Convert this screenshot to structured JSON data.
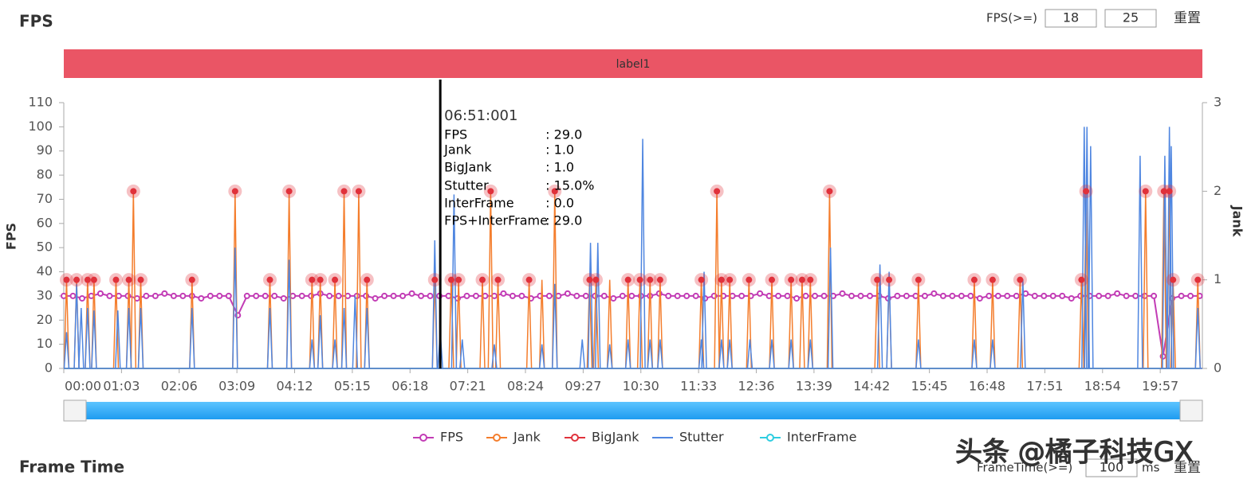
{
  "header": {
    "title": "FPS",
    "threshold_label": "FPS(>=)",
    "threshold_low": 18,
    "threshold_high": 25,
    "reset": "重置"
  },
  "chart_data": {
    "type": "line",
    "band_label": "label1",
    "ylabel": "FPS",
    "y2label": "Jank",
    "xlim": [
      0,
      1243
    ],
    "xticks": [
      {
        "value": 0,
        "label": "00:00"
      },
      {
        "value": 63,
        "label": "01:03"
      },
      {
        "value": 126,
        "label": "02:06"
      },
      {
        "value": 189,
        "label": "03:09"
      },
      {
        "value": 252,
        "label": "04:12"
      },
      {
        "value": 315,
        "label": "05:15"
      },
      {
        "value": 378,
        "label": "06:18"
      },
      {
        "value": 441,
        "label": "07:21"
      },
      {
        "value": 504,
        "label": "08:24"
      },
      {
        "value": 567,
        "label": "09:27"
      },
      {
        "value": 630,
        "label": "10:30"
      },
      {
        "value": 693,
        "label": "11:33"
      },
      {
        "value": 756,
        "label": "12:36"
      },
      {
        "value": 819,
        "label": "13:39"
      },
      {
        "value": 882,
        "label": "14:42"
      },
      {
        "value": 945,
        "label": "15:45"
      },
      {
        "value": 1008,
        "label": "16:48"
      },
      {
        "value": 1071,
        "label": "17:51"
      },
      {
        "value": 1134,
        "label": "18:54"
      },
      {
        "value": 1197,
        "label": "19:57"
      }
    ],
    "ylim": [
      0,
      110
    ],
    "yticks": [
      0,
      10,
      20,
      30,
      40,
      50,
      60,
      70,
      80,
      90,
      100,
      110
    ],
    "y2lim": [
      0,
      3
    ],
    "y2ticks": [
      0,
      1,
      2,
      3
    ],
    "cursor_x": 411,
    "tooltip": {
      "time": "06:51:001",
      "rows": [
        {
          "label": "FPS",
          "value": ": 29.0"
        },
        {
          "label": "Jank",
          "value": ": 1.0"
        },
        {
          "label": "BigJank",
          "value": ": 1.0"
        },
        {
          "label": "Stutter",
          "value": ": 15.0%"
        },
        {
          "label": "InterFrame",
          "value": ": 0.0"
        },
        {
          "label": "FPS+InterFrame",
          "value": ": 29.0"
        }
      ]
    },
    "series": [
      {
        "name": "FPS",
        "color": "#c23cb5",
        "mark": "line",
        "axis": "y",
        "x": [
          0,
          10,
          20,
          30,
          40,
          50,
          60,
          70,
          80,
          90,
          100,
          110,
          120,
          130,
          140,
          150,
          160,
          170,
          180,
          190,
          200,
          210,
          220,
          230,
          240,
          250,
          260,
          270,
          280,
          290,
          300,
          310,
          320,
          330,
          340,
          350,
          360,
          370,
          380,
          390,
          400,
          410,
          420,
          430,
          440,
          450,
          460,
          470,
          480,
          490,
          500,
          510,
          520,
          530,
          540,
          550,
          560,
          570,
          580,
          590,
          600,
          610,
          620,
          630,
          640,
          650,
          660,
          670,
          680,
          690,
          700,
          710,
          720,
          730,
          740,
          750,
          760,
          770,
          780,
          790,
          800,
          810,
          820,
          830,
          840,
          850,
          860,
          870,
          880,
          890,
          900,
          910,
          920,
          930,
          940,
          950,
          960,
          970,
          980,
          990,
          1000,
          1010,
          1020,
          1030,
          1040,
          1050,
          1060,
          1070,
          1080,
          1090,
          1100,
          1110,
          1120,
          1130,
          1140,
          1150,
          1160,
          1170,
          1180,
          1190,
          1200,
          1210,
          1220,
          1230,
          1240
        ],
        "values": [
          30,
          30,
          29,
          30,
          31,
          30,
          30,
          30,
          29,
          30,
          30,
          31,
          30,
          30,
          30,
          29,
          30,
          30,
          30,
          22,
          30,
          30,
          30,
          30,
          29,
          30,
          30,
          30,
          31,
          30,
          30,
          30,
          30,
          30,
          29,
          30,
          30,
          30,
          31,
          30,
          30,
          30,
          30,
          29,
          30,
          30,
          30,
          30,
          31,
          30,
          30,
          29,
          30,
          30,
          30,
          31,
          30,
          30,
          30,
          30,
          29,
          30,
          30,
          30,
          30,
          31,
          30,
          30,
          30,
          30,
          29,
          30,
          30,
          30,
          30,
          30,
          31,
          30,
          30,
          30,
          29,
          30,
          30,
          30,
          30,
          31,
          30,
          30,
          30,
          30,
          29,
          30,
          30,
          30,
          30,
          31,
          30,
          30,
          30,
          30,
          29,
          30,
          30,
          30,
          30,
          31,
          30,
          30,
          30,
          30,
          29,
          30,
          30,
          30,
          30,
          31,
          30,
          30,
          30,
          30,
          5,
          29,
          30,
          30,
          30
        ]
      },
      {
        "name": "Jank",
        "color": "#f47d2c",
        "mark": "stem",
        "axis": "y2",
        "x": [
          3,
          14,
          26,
          33,
          57,
          71,
          76,
          84,
          140,
          187,
          225,
          246,
          271,
          280,
          296,
          306,
          322,
          331,
          405,
          423,
          431,
          457,
          466,
          474,
          508,
          522,
          536,
          574,
          581,
          596,
          616,
          629,
          640,
          651,
          696,
          713,
          718,
          727,
          748,
          773,
          794,
          806,
          815,
          836,
          888,
          901,
          933,
          994,
          1014,
          1044,
          1111,
          1116,
          1181,
          1201,
          1207,
          1211,
          1238
        ],
        "values": [
          1,
          1,
          1,
          1,
          1,
          1,
          2,
          1,
          1,
          2,
          1,
          2,
          1,
          1,
          1,
          2,
          2,
          1,
          1,
          1,
          1,
          1,
          2,
          1,
          1,
          1,
          2,
          1,
          1,
          1,
          1,
          1,
          1,
          1,
          1,
          2,
          1,
          1,
          1,
          1,
          1,
          1,
          1,
          2,
          1,
          1,
          1,
          1,
          1,
          1,
          1,
          2,
          2,
          2,
          2,
          1,
          1
        ]
      },
      {
        "name": "BigJank",
        "color": "#e0323c",
        "mark": "dot",
        "axis": "y2",
        "x": [
          3,
          14,
          26,
          33,
          57,
          71,
          76,
          84,
          140,
          187,
          225,
          246,
          271,
          280,
          296,
          306,
          322,
          331,
          405,
          423,
          431,
          457,
          466,
          474,
          508,
          536,
          574,
          581,
          616,
          629,
          640,
          651,
          696,
          713,
          718,
          727,
          748,
          773,
          794,
          806,
          815,
          836,
          888,
          901,
          933,
          994,
          1014,
          1044,
          1111,
          1116,
          1181,
          1201,
          1207,
          1211,
          1238
        ],
        "values": [
          1,
          1,
          1,
          1,
          1,
          1,
          2,
          1,
          1,
          2,
          1,
          2,
          1,
          1,
          1,
          2,
          2,
          1,
          1,
          1,
          1,
          1,
          2,
          1,
          1,
          2,
          1,
          1,
          1,
          1,
          1,
          1,
          1,
          2,
          1,
          1,
          1,
          1,
          1,
          1,
          1,
          2,
          1,
          1,
          1,
          1,
          1,
          1,
          1,
          2,
          2,
          2,
          2,
          1,
          1
        ]
      },
      {
        "name": "Stutter",
        "color": "#4f86e0",
        "mark": "stem",
        "axis": "y",
        "x": [
          3,
          14,
          19,
          26,
          33,
          59,
          71,
          84,
          140,
          187,
          225,
          246,
          271,
          280,
          296,
          306,
          318,
          331,
          405,
          411,
          426,
          435,
          470,
          522,
          536,
          566,
          575,
          583,
          596,
          616,
          632,
          640,
          651,
          696,
          699,
          718,
          727,
          749,
          773,
          794,
          815,
          837,
          891,
          901,
          933,
          994,
          1014,
          1047,
          1114,
          1117,
          1121,
          1175,
          1202,
          1207,
          1209,
          1238
        ],
        "values": [
          15,
          35,
          25,
          25,
          24,
          24,
          25,
          25,
          25,
          50,
          25,
          45,
          12,
          22,
          12,
          25,
          30,
          25,
          53,
          15,
          72,
          12,
          10,
          10,
          35,
          12,
          52,
          52,
          10,
          12,
          95,
          12,
          12,
          12,
          40,
          12,
          12,
          12,
          12,
          12,
          12,
          50,
          43,
          40,
          12,
          12,
          12,
          37,
          100,
          100,
          92,
          88,
          88,
          100,
          92,
          25
        ]
      },
      {
        "name": "InterFrame",
        "color": "#2ecde0",
        "mark": "line",
        "axis": "y2",
        "x": [
          0,
          1240
        ],
        "values": [
          0,
          0
        ]
      }
    ]
  },
  "footer": {
    "title": "Frame Time",
    "threshold_label": "FrameTime(>=)",
    "threshold": 100,
    "unit": "ms",
    "reset": "重置"
  },
  "watermark": "头条 @橘子科技GX"
}
